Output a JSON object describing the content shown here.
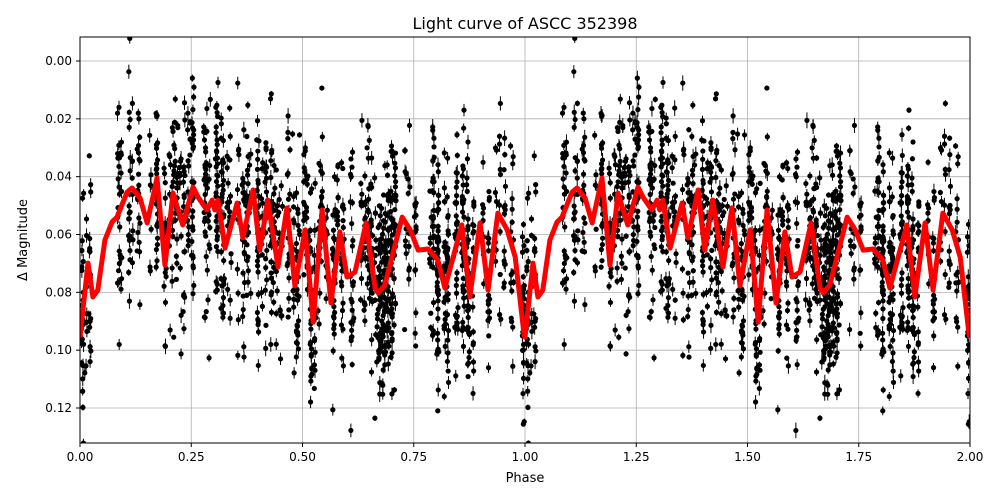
{
  "chart_data": {
    "type": "scatter",
    "title": "Light curve of ASCC 352398",
    "xlabel": "Phase",
    "ylabel": "Δ Magnitude",
    "xlim": [
      0,
      2
    ],
    "ylim": [
      -0.0083,
      0.1321
    ],
    "y_inverted": true,
    "grid": true,
    "x_ticks": [
      "0.00",
      "0.25",
      "0.50",
      "0.75",
      "1.00",
      "1.25",
      "1.50",
      "1.75",
      "2.00"
    ],
    "y_ticks": [
      "0.00",
      "0.02",
      "0.04",
      "0.06",
      "0.08",
      "0.10",
      "0.12"
    ],
    "colors": {
      "observations": "#000000",
      "model": "#ff0000",
      "grid": "#b0b0b0"
    },
    "model_curve": {
      "repeats_with_period": 1,
      "phase": [
        0.0,
        0.018,
        0.029,
        0.04,
        0.056,
        0.072,
        0.083,
        0.106,
        0.117,
        0.135,
        0.151,
        0.173,
        0.191,
        0.209,
        0.231,
        0.254,
        0.265,
        0.285,
        0.297,
        0.303,
        0.31,
        0.326,
        0.353,
        0.366,
        0.389,
        0.404,
        0.422,
        0.445,
        0.465,
        0.483,
        0.506,
        0.524,
        0.544,
        0.564,
        0.584,
        0.6,
        0.618,
        0.643,
        0.663,
        0.67,
        0.685,
        0.724,
        0.742,
        0.76,
        0.782,
        0.804,
        0.82,
        0.858,
        0.876,
        0.899,
        0.917,
        0.939,
        0.96,
        0.978,
        0.998
      ],
      "magnitude": [
        0.0955,
        0.0699,
        0.0816,
        0.0792,
        0.0619,
        0.0557,
        0.054,
        0.0453,
        0.0439,
        0.0474,
        0.056,
        0.0405,
        0.0706,
        0.0457,
        0.0567,
        0.0436,
        0.047,
        0.0515,
        0.0481,
        0.0515,
        0.0481,
        0.0647,
        0.0491,
        0.0612,
        0.0446,
        0.0654,
        0.0481,
        0.0712,
        0.0508,
        0.0778,
        0.0584,
        0.0903,
        0.0515,
        0.0837,
        0.0591,
        0.0747,
        0.073,
        0.056,
        0.0785,
        0.0802,
        0.0775,
        0.054,
        0.0584,
        0.0654,
        0.065,
        0.0688,
        0.0785,
        0.0567,
        0.0816,
        0.056,
        0.0792,
        0.0526,
        0.0584,
        0.0678,
        0.0948
      ]
    },
    "observations": {
      "style": "points with vertical error bars",
      "scatter_about_model": 0.03
    }
  }
}
